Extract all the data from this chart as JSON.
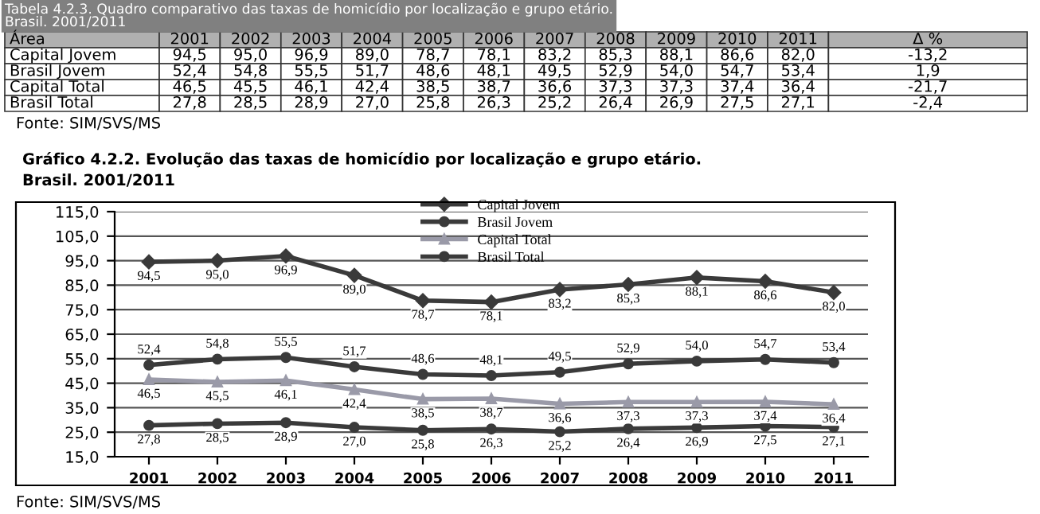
{
  "chart_data": {
    "type": "line",
    "title": "Gráfico 4.2.2. Evolução das taxas de homicídio por localização e grupo etário.\nBrasil. 2001/2011",
    "categories": [
      "2001",
      "2002",
      "2003",
      "2004",
      "2005",
      "2006",
      "2007",
      "2008",
      "2009",
      "2010",
      "2011"
    ],
    "series": [
      {
        "name": "Capital Jovem",
        "color": "#3a3a3a",
        "marker": "diamond",
        "values": [
          94.5,
          95.0,
          96.9,
          89.0,
          78.7,
          78.1,
          83.2,
          85.3,
          88.1,
          86.6,
          82.0
        ],
        "value_labels": [
          "94,5",
          "95,0",
          "96,9",
          "89,0",
          "78,7",
          "78,1",
          "83,2",
          "85,3",
          "88,1",
          "86,6",
          "82,0"
        ]
      },
      {
        "name": "Brasil Jovem",
        "color": "#3a3a3a",
        "marker": "circle",
        "values": [
          52.4,
          54.8,
          55.5,
          51.7,
          48.6,
          48.1,
          49.5,
          52.9,
          54.0,
          54.7,
          53.4
        ],
        "value_labels": [
          "52,4",
          "54,8",
          "55,5",
          "51,7",
          "48,6",
          "48,1",
          "49,5",
          "52,9",
          "54,0",
          "54,7",
          "53,4"
        ]
      },
      {
        "name": "Capital Total",
        "color": "#9a9aa8",
        "marker": "triangle",
        "values": [
          46.5,
          45.5,
          46.1,
          42.4,
          38.5,
          38.7,
          36.6,
          37.3,
          37.3,
          37.4,
          36.4
        ],
        "value_labels": [
          "46,5",
          "45,5",
          "46,1",
          "42,4",
          "38,5",
          "38,7",
          "36,6",
          "37,3",
          "37,3",
          "37,4",
          "36,4"
        ]
      },
      {
        "name": "Brasil Total",
        "color": "#3a3a3a",
        "marker": "circle",
        "values": [
          27.8,
          28.5,
          28.9,
          27.0,
          25.8,
          26.3,
          25.2,
          26.4,
          26.9,
          27.5,
          27.1
        ],
        "value_labels": [
          "27,8",
          "28,5",
          "28,9",
          "27,0",
          "25,8",
          "26,3",
          "25,2",
          "26,4",
          "26,9",
          "27,5",
          "27,1"
        ]
      }
    ],
    "ylim": [
      15.0,
      115.0
    ],
    "yticks": [
      {
        "value": 15,
        "label": "15,0"
      },
      {
        "value": 25,
        "label": "25,0"
      },
      {
        "value": 35,
        "label": "35,0"
      },
      {
        "value": 45,
        "label": "45,0"
      },
      {
        "value": 55,
        "label": "55,0"
      },
      {
        "value": 65,
        "label": "65,0"
      },
      {
        "value": 75,
        "label": "75,0"
      },
      {
        "value": 85,
        "label": "85,0"
      },
      {
        "value": 95,
        "label": "95,0"
      },
      {
        "value": 105,
        "label": "105,0"
      },
      {
        "value": 115,
        "label": "115,0"
      }
    ],
    "grid": "y",
    "legend": "top",
    "line_style": "solid",
    "annotations": [
      "Tabela 4.2.3. Quadro comparativo das taxas de homicídio por localização e grupo etário.\nBrasil. 2001/2011",
      "Área",
      "Δ %",
      "-13,2",
      "1,9",
      "-21,7",
      "-2,4",
      "Fonte: SIM/SVS/MS",
      "Fonte: SIM/SVS/MS"
    ]
  }
}
